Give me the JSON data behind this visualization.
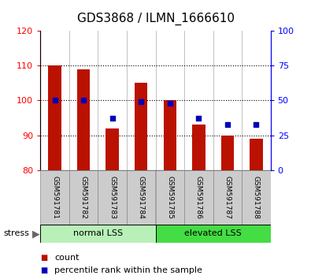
{
  "title": "GDS3868 / ILMN_1666610",
  "samples": [
    "GSM591781",
    "GSM591782",
    "GSM591783",
    "GSM591784",
    "GSM591785",
    "GSM591786",
    "GSM591787",
    "GSM591788"
  ],
  "counts": [
    110,
    109,
    92,
    105,
    100,
    93,
    90,
    89
  ],
  "percentiles": [
    50,
    50,
    37,
    49,
    48,
    37,
    33,
    33
  ],
  "ylim_left": [
    80,
    120
  ],
  "ylim_right": [
    0,
    100
  ],
  "yticks_left": [
    80,
    90,
    100,
    110,
    120
  ],
  "yticks_right": [
    0,
    25,
    50,
    75,
    100
  ],
  "groups": [
    {
      "label": "normal LSS",
      "indices": [
        0,
        1,
        2,
        3
      ],
      "color": "#b8f0b8"
    },
    {
      "label": "elevated LSS",
      "indices": [
        4,
        5,
        6,
        7
      ],
      "color": "#44dd44"
    }
  ],
  "bar_color": "#bb1100",
  "dot_color": "#0000bb",
  "bar_width": 0.45,
  "stress_label": "stress",
  "legend_count_label": "count",
  "legend_pct_label": "percentile rank within the sample",
  "title_fontsize": 11,
  "tick_fontsize": 8,
  "sample_fontsize": 6.5,
  "group_fontsize": 8,
  "legend_fontsize": 8
}
